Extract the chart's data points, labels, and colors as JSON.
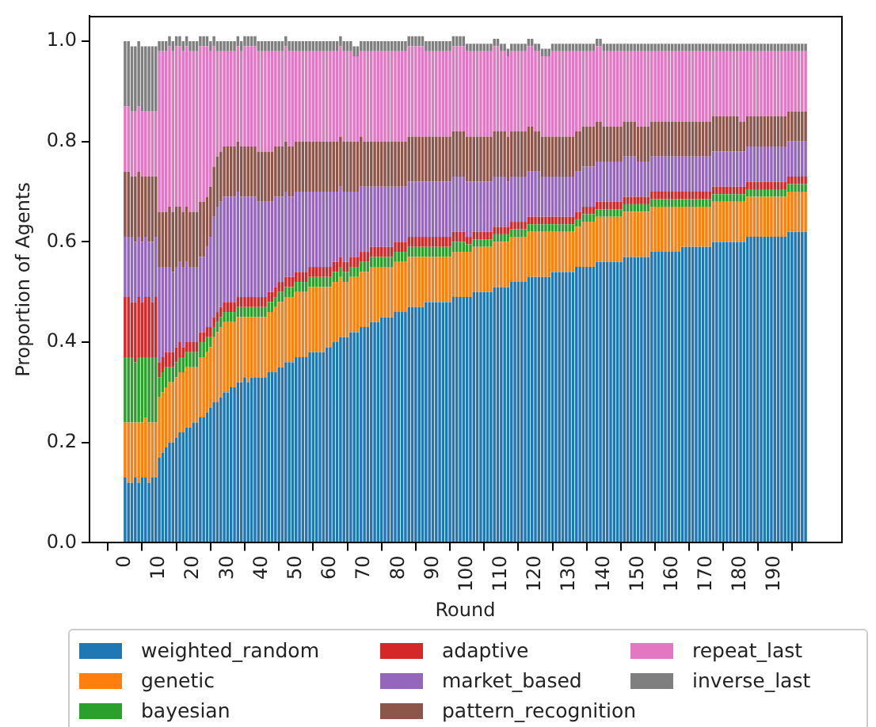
{
  "chart_data": {
    "type": "bar",
    "stacked": true,
    "xlabel": "Round",
    "ylabel": "Proportion of Agents",
    "legend": "bottom",
    "x": [
      0,
      1,
      2,
      3,
      4,
      5,
      6,
      7,
      8,
      9,
      10,
      11,
      12,
      13,
      14,
      15,
      16,
      17,
      18,
      19,
      20,
      21,
      22,
      23,
      24,
      25,
      26,
      27,
      28,
      29,
      30,
      31,
      32,
      33,
      34,
      35,
      36,
      37,
      38,
      39,
      40,
      41,
      42,
      43,
      44,
      45,
      46,
      47,
      48,
      49,
      50,
      51,
      52,
      53,
      54,
      55,
      56,
      57,
      58,
      59,
      60,
      61,
      62,
      63,
      64,
      65,
      66,
      67,
      68,
      69,
      70,
      71,
      72,
      73,
      74,
      75,
      76,
      77,
      78,
      79,
      80,
      81,
      82,
      83,
      84,
      85,
      86,
      87,
      88,
      89,
      90,
      91,
      92,
      93,
      94,
      95,
      96,
      97,
      98,
      99,
      100,
      101,
      102,
      103,
      104,
      105,
      106,
      107,
      108,
      109,
      110,
      111,
      112,
      113,
      114,
      115,
      116,
      117,
      118,
      119,
      120,
      121,
      122,
      123,
      124,
      125,
      126,
      127,
      128,
      129,
      130,
      131,
      132,
      133,
      134,
      135,
      136,
      137,
      138,
      139,
      140,
      141,
      142,
      143,
      144,
      145,
      146,
      147,
      148,
      149,
      150,
      151,
      152,
      153,
      154,
      155,
      156,
      157,
      158,
      159,
      160,
      161,
      162,
      163,
      164,
      165,
      166,
      167,
      168,
      169,
      170,
      171,
      172,
      173,
      174,
      175,
      176,
      177,
      178,
      179,
      180,
      181,
      182,
      183,
      184,
      185,
      186,
      187,
      188,
      189,
      190,
      191,
      192,
      193,
      194,
      195,
      196,
      197,
      198,
      199
    ],
    "xlim": [
      -10.4,
      209.4
    ],
    "xticks": [
      0,
      10,
      20,
      30,
      40,
      50,
      60,
      70,
      80,
      90,
      100,
      110,
      120,
      130,
      140,
      150,
      160,
      170,
      180,
      190
    ],
    "ylim": [
      0,
      1.05
    ],
    "yticks": [
      {
        "value": 0,
        "label": "0.0"
      },
      {
        "value": 0.2,
        "label": "0.2"
      },
      {
        "value": 0.4,
        "label": "0.4"
      },
      {
        "value": 0.6,
        "label": "0.6"
      },
      {
        "value": 0.8,
        "label": "0.8"
      },
      {
        "value": 1,
        "label": "1.0"
      }
    ],
    "series": [
      {
        "name": "weighted_random",
        "color": "#1f77b4",
        "values": [
          0.13,
          0.12,
          0.12,
          0.13,
          0.12,
          0.13,
          0.13,
          0.12,
          0.13,
          0.13,
          0.17,
          0.18,
          0.19,
          0.2,
          0.2,
          0.21,
          0.22,
          0.22,
          0.23,
          0.23,
          0.24,
          0.24,
          0.25,
          0.25,
          0.26,
          0.27,
          0.28,
          0.28,
          0.29,
          0.3,
          0.3,
          0.31,
          0.31,
          0.32,
          0.32,
          0.33,
          0.32,
          0.33,
          0.33,
          0.33,
          0.33,
          0.33,
          0.34,
          0.34,
          0.34,
          0.35,
          0.35,
          0.36,
          0.36,
          0.36,
          0.37,
          0.37,
          0.37,
          0.37,
          0.38,
          0.38,
          0.38,
          0.38,
          0.38,
          0.39,
          0.39,
          0.4,
          0.4,
          0.41,
          0.41,
          0.41,
          0.42,
          0.42,
          0.42,
          0.43,
          0.43,
          0.43,
          0.44,
          0.44,
          0.44,
          0.45,
          0.45,
          0.45,
          0.45,
          0.46,
          0.46,
          0.46,
          0.46,
          0.47,
          0.47,
          0.47,
          0.47,
          0.47,
          0.48,
          0.48,
          0.48,
          0.48,
          0.48,
          0.48,
          0.48,
          0.48,
          0.49,
          0.49,
          0.49,
          0.49,
          0.49,
          0.49,
          0.5,
          0.5,
          0.5,
          0.5,
          0.5,
          0.5,
          0.51,
          0.51,
          0.51,
          0.51,
          0.51,
          0.52,
          0.52,
          0.52,
          0.52,
          0.52,
          0.53,
          0.53,
          0.53,
          0.53,
          0.53,
          0.53,
          0.53,
          0.54,
          0.54,
          0.54,
          0.54,
          0.54,
          0.54,
          0.54,
          0.55,
          0.55,
          0.55,
          0.55,
          0.55,
          0.55,
          0.56,
          0.56,
          0.56,
          0.56,
          0.56,
          0.56,
          0.56,
          0.56,
          0.57,
          0.57,
          0.57,
          0.57,
          0.57,
          0.57,
          0.57,
          0.57,
          0.58,
          0.58,
          0.58,
          0.58,
          0.58,
          0.58,
          0.58,
          0.58,
          0.58,
          0.59,
          0.59,
          0.59,
          0.59,
          0.59,
          0.59,
          0.59,
          0.59,
          0.59,
          0.6,
          0.6,
          0.6,
          0.6,
          0.6,
          0.6,
          0.6,
          0.6,
          0.6,
          0.6,
          0.61,
          0.61,
          0.61,
          0.61,
          0.61,
          0.61,
          0.61,
          0.61,
          0.61,
          0.61,
          0.61,
          0.61,
          0.62,
          0.62,
          0.62,
          0.62,
          0.62,
          0.62
        ]
      },
      {
        "name": "genetic",
        "color": "#ff7f0e",
        "values": [
          0.11,
          0.12,
          0.12,
          0.11,
          0.12,
          0.11,
          0.12,
          0.12,
          0.11,
          0.11,
          0.12,
          0.12,
          0.12,
          0.12,
          0.12,
          0.12,
          0.12,
          0.12,
          0.12,
          0.12,
          0.11,
          0.11,
          0.12,
          0.12,
          0.12,
          0.12,
          0.13,
          0.14,
          0.14,
          0.14,
          0.14,
          0.13,
          0.13,
          0.13,
          0.13,
          0.12,
          0.13,
          0.12,
          0.12,
          0.12,
          0.12,
          0.12,
          0.12,
          0.12,
          0.13,
          0.13,
          0.13,
          0.13,
          0.13,
          0.13,
          0.13,
          0.13,
          0.13,
          0.13,
          0.13,
          0.13,
          0.13,
          0.13,
          0.13,
          0.12,
          0.12,
          0.12,
          0.12,
          0.12,
          0.11,
          0.11,
          0.11,
          0.11,
          0.11,
          0.11,
          0.11,
          0.11,
          0.11,
          0.11,
          0.11,
          0.1,
          0.1,
          0.1,
          0.1,
          0.1,
          0.1,
          0.1,
          0.1,
          0.1,
          0.1,
          0.1,
          0.1,
          0.1,
          0.09,
          0.09,
          0.09,
          0.09,
          0.09,
          0.09,
          0.09,
          0.09,
          0.09,
          0.09,
          0.09,
          0.09,
          0.09,
          0.09,
          0.09,
          0.09,
          0.09,
          0.09,
          0.09,
          0.09,
          0.09,
          0.09,
          0.09,
          0.09,
          0.09,
          0.09,
          0.09,
          0.09,
          0.09,
          0.09,
          0.09,
          0.09,
          0.09,
          0.09,
          0.09,
          0.09,
          0.09,
          0.08,
          0.08,
          0.08,
          0.08,
          0.08,
          0.08,
          0.08,
          0.08,
          0.08,
          0.09,
          0.09,
          0.09,
          0.09,
          0.09,
          0.09,
          0.09,
          0.09,
          0.09,
          0.09,
          0.09,
          0.09,
          0.09,
          0.09,
          0.09,
          0.09,
          0.09,
          0.09,
          0.09,
          0.09,
          0.09,
          0.09,
          0.09,
          0.09,
          0.09,
          0.09,
          0.09,
          0.09,
          0.09,
          0.08,
          0.08,
          0.08,
          0.08,
          0.08,
          0.08,
          0.08,
          0.08,
          0.08,
          0.08,
          0.08,
          0.08,
          0.08,
          0.08,
          0.08,
          0.08,
          0.08,
          0.08,
          0.08,
          0.08,
          0.08,
          0.08,
          0.08,
          0.08,
          0.08,
          0.08,
          0.08,
          0.08,
          0.08,
          0.08,
          0.08,
          0.08,
          0.08,
          0.08,
          0.08,
          0.08,
          0.08
        ]
      },
      {
        "name": "bayesian",
        "color": "#2ca02c",
        "values": [
          0.13,
          0.13,
          0.13,
          0.12,
          0.13,
          0.13,
          0.12,
          0.13,
          0.13,
          0.13,
          0.04,
          0.04,
          0.04,
          0.03,
          0.03,
          0.03,
          0.03,
          0.03,
          0.03,
          0.03,
          0.03,
          0.03,
          0.03,
          0.03,
          0.03,
          0.02,
          0.02,
          0.02,
          0.02,
          0.02,
          0.02,
          0.02,
          0.02,
          0.02,
          0.02,
          0.02,
          0.02,
          0.02,
          0.02,
          0.02,
          0.02,
          0.02,
          0.02,
          0.02,
          0.02,
          0.02,
          0.02,
          0.02,
          0.02,
          0.02,
          0.02,
          0.02,
          0.02,
          0.02,
          0.02,
          0.02,
          0.02,
          0.02,
          0.02,
          0.02,
          0.02,
          0.02,
          0.02,
          0.02,
          0.02,
          0.02,
          0.02,
          0.02,
          0.02,
          0.02,
          0.02,
          0.02,
          0.02,
          0.02,
          0.02,
          0.02,
          0.02,
          0.02,
          0.02,
          0.02,
          0.02,
          0.02,
          0.02,
          0.02,
          0.02,
          0.02,
          0.02,
          0.02,
          0.02,
          0.02,
          0.02,
          0.02,
          0.02,
          0.02,
          0.02,
          0.02,
          0.02,
          0.02,
          0.02,
          0.02,
          0.015,
          0.015,
          0.015,
          0.015,
          0.015,
          0.015,
          0.015,
          0.015,
          0.015,
          0.015,
          0.015,
          0.015,
          0.015,
          0.015,
          0.015,
          0.015,
          0.015,
          0.015,
          0.015,
          0.015,
          0.015,
          0.015,
          0.015,
          0.015,
          0.015,
          0.015,
          0.015,
          0.015,
          0.015,
          0.015,
          0.015,
          0.015,
          0.015,
          0.015,
          0.015,
          0.015,
          0.015,
          0.015,
          0.015,
          0.015,
          0.015,
          0.015,
          0.015,
          0.015,
          0.015,
          0.015,
          0.015,
          0.015,
          0.015,
          0.015,
          0.015,
          0.015,
          0.015,
          0.015,
          0.015,
          0.015,
          0.015,
          0.015,
          0.015,
          0.015,
          0.015,
          0.015,
          0.015,
          0.015,
          0.015,
          0.015,
          0.015,
          0.015,
          0.015,
          0.015,
          0.015,
          0.015,
          0.015,
          0.015,
          0.015,
          0.015,
          0.015,
          0.015,
          0.015,
          0.015,
          0.015,
          0.015,
          0.015,
          0.015,
          0.015,
          0.015,
          0.015,
          0.015,
          0.015,
          0.015,
          0.015,
          0.015,
          0.015,
          0.015,
          0.015,
          0.015,
          0.015,
          0.015,
          0.015,
          0.015
        ]
      },
      {
        "name": "adaptive",
        "color": "#d62728",
        "values": [
          0.12,
          0.12,
          0.11,
          0.12,
          0.12,
          0.11,
          0.12,
          0.12,
          0.11,
          0.12,
          0.03,
          0.03,
          0.03,
          0.03,
          0.03,
          0.03,
          0.03,
          0.02,
          0.02,
          0.02,
          0.02,
          0.02,
          0.02,
          0.02,
          0.02,
          0.02,
          0.02,
          0.02,
          0.02,
          0.02,
          0.02,
          0.02,
          0.02,
          0.02,
          0.02,
          0.02,
          0.02,
          0.02,
          0.02,
          0.02,
          0.02,
          0.02,
          0.02,
          0.02,
          0.02,
          0.02,
          0.02,
          0.02,
          0.02,
          0.02,
          0.02,
          0.02,
          0.02,
          0.02,
          0.02,
          0.02,
          0.02,
          0.02,
          0.02,
          0.02,
          0.02,
          0.02,
          0.02,
          0.02,
          0.02,
          0.02,
          0.02,
          0.02,
          0.02,
          0.02,
          0.02,
          0.02,
          0.02,
          0.02,
          0.02,
          0.02,
          0.02,
          0.02,
          0.02,
          0.02,
          0.02,
          0.02,
          0.02,
          0.02,
          0.02,
          0.02,
          0.02,
          0.02,
          0.02,
          0.02,
          0.02,
          0.02,
          0.02,
          0.02,
          0.02,
          0.02,
          0.02,
          0.02,
          0.02,
          0.02,
          0.015,
          0.015,
          0.015,
          0.015,
          0.015,
          0.015,
          0.015,
          0.015,
          0.015,
          0.015,
          0.015,
          0.015,
          0.015,
          0.015,
          0.015,
          0.015,
          0.015,
          0.015,
          0.015,
          0.015,
          0.015,
          0.015,
          0.015,
          0.015,
          0.015,
          0.015,
          0.015,
          0.015,
          0.015,
          0.015,
          0.015,
          0.015,
          0.015,
          0.015,
          0.015,
          0.015,
          0.015,
          0.015,
          0.015,
          0.015,
          0.015,
          0.015,
          0.015,
          0.015,
          0.015,
          0.015,
          0.015,
          0.015,
          0.015,
          0.015,
          0.015,
          0.015,
          0.015,
          0.015,
          0.015,
          0.015,
          0.015,
          0.015,
          0.015,
          0.015,
          0.015,
          0.015,
          0.015,
          0.015,
          0.015,
          0.015,
          0.015,
          0.015,
          0.015,
          0.015,
          0.015,
          0.015,
          0.015,
          0.015,
          0.015,
          0.015,
          0.015,
          0.015,
          0.015,
          0.015,
          0.015,
          0.015,
          0.015,
          0.015,
          0.015,
          0.015,
          0.015,
          0.015,
          0.015,
          0.015,
          0.015,
          0.015,
          0.015,
          0.015,
          0.015,
          0.015,
          0.015,
          0.015,
          0.015,
          0.015
        ]
      },
      {
        "name": "market_based",
        "color": "#9467bd",
        "values": [
          0.12,
          0.12,
          0.13,
          0.12,
          0.12,
          0.12,
          0.12,
          0.11,
          0.12,
          0.12,
          0.19,
          0.18,
          0.17,
          0.17,
          0.16,
          0.16,
          0.16,
          0.16,
          0.16,
          0.15,
          0.15,
          0.15,
          0.15,
          0.15,
          0.16,
          0.18,
          0.2,
          0.21,
          0.21,
          0.21,
          0.21,
          0.21,
          0.21,
          0.21,
          0.2,
          0.2,
          0.2,
          0.2,
          0.2,
          0.19,
          0.19,
          0.19,
          0.18,
          0.18,
          0.18,
          0.17,
          0.17,
          0.17,
          0.16,
          0.16,
          0.16,
          0.16,
          0.16,
          0.16,
          0.15,
          0.15,
          0.15,
          0.15,
          0.15,
          0.15,
          0.15,
          0.14,
          0.14,
          0.14,
          0.14,
          0.14,
          0.13,
          0.13,
          0.13,
          0.13,
          0.13,
          0.13,
          0.12,
          0.12,
          0.12,
          0.12,
          0.12,
          0.12,
          0.12,
          0.11,
          0.11,
          0.11,
          0.11,
          0.11,
          0.11,
          0.11,
          0.11,
          0.11,
          0.11,
          0.11,
          0.11,
          0.11,
          0.11,
          0.11,
          0.11,
          0.11,
          0.11,
          0.11,
          0.11,
          0.11,
          0.11,
          0.11,
          0.1,
          0.1,
          0.1,
          0.1,
          0.1,
          0.1,
          0.1,
          0.1,
          0.1,
          0.1,
          0.09,
          0.09,
          0.09,
          0.09,
          0.09,
          0.09,
          0.09,
          0.09,
          0.09,
          0.09,
          0.08,
          0.08,
          0.08,
          0.08,
          0.08,
          0.08,
          0.08,
          0.08,
          0.08,
          0.08,
          0.08,
          0.08,
          0.08,
          0.08,
          0.08,
          0.08,
          0.08,
          0.08,
          0.08,
          0.08,
          0.08,
          0.08,
          0.08,
          0.08,
          0.08,
          0.08,
          0.08,
          0.08,
          0.07,
          0.07,
          0.07,
          0.07,
          0.07,
          0.07,
          0.07,
          0.07,
          0.07,
          0.07,
          0.07,
          0.07,
          0.07,
          0.07,
          0.07,
          0.07,
          0.07,
          0.07,
          0.07,
          0.07,
          0.07,
          0.07,
          0.07,
          0.07,
          0.07,
          0.07,
          0.07,
          0.07,
          0.07,
          0.07,
          0.07,
          0.07,
          0.07,
          0.07,
          0.07,
          0.07,
          0.07,
          0.07,
          0.07,
          0.07,
          0.07,
          0.07,
          0.07,
          0.07,
          0.07,
          0.07,
          0.07,
          0.07,
          0.07,
          0.07
        ]
      },
      {
        "name": "pattern_recognition",
        "color": "#8c564b",
        "values": [
          0.13,
          0.13,
          0.12,
          0.13,
          0.13,
          0.13,
          0.12,
          0.13,
          0.13,
          0.12,
          0.11,
          0.11,
          0.11,
          0.12,
          0.12,
          0.12,
          0.11,
          0.11,
          0.11,
          0.11,
          0.11,
          0.11,
          0.11,
          0.11,
          0.1,
          0.1,
          0.1,
          0.1,
          0.1,
          0.1,
          0.1,
          0.1,
          0.1,
          0.1,
          0.1,
          0.1,
          0.1,
          0.1,
          0.1,
          0.1,
          0.1,
          0.1,
          0.1,
          0.1,
          0.1,
          0.1,
          0.1,
          0.1,
          0.1,
          0.1,
          0.1,
          0.1,
          0.1,
          0.1,
          0.1,
          0.1,
          0.1,
          0.1,
          0.1,
          0.1,
          0.1,
          0.1,
          0.1,
          0.1,
          0.1,
          0.1,
          0.1,
          0.1,
          0.1,
          0.1,
          0.09,
          0.09,
          0.09,
          0.09,
          0.09,
          0.09,
          0.09,
          0.09,
          0.09,
          0.09,
          0.09,
          0.09,
          0.09,
          0.09,
          0.09,
          0.09,
          0.09,
          0.09,
          0.09,
          0.09,
          0.09,
          0.09,
          0.09,
          0.09,
          0.09,
          0.09,
          0.09,
          0.09,
          0.09,
          0.09,
          0.09,
          0.09,
          0.09,
          0.09,
          0.09,
          0.09,
          0.09,
          0.09,
          0.09,
          0.09,
          0.09,
          0.09,
          0.09,
          0.09,
          0.09,
          0.09,
          0.09,
          0.09,
          0.09,
          0.09,
          0.08,
          0.08,
          0.08,
          0.08,
          0.08,
          0.08,
          0.08,
          0.08,
          0.08,
          0.08,
          0.08,
          0.08,
          0.08,
          0.08,
          0.08,
          0.08,
          0.08,
          0.08,
          0.08,
          0.08,
          0.07,
          0.07,
          0.07,
          0.07,
          0.07,
          0.07,
          0.07,
          0.07,
          0.07,
          0.07,
          0.07,
          0.07,
          0.07,
          0.07,
          0.07,
          0.07,
          0.07,
          0.07,
          0.07,
          0.07,
          0.07,
          0.07,
          0.07,
          0.07,
          0.07,
          0.07,
          0.07,
          0.07,
          0.07,
          0.07,
          0.07,
          0.07,
          0.07,
          0.07,
          0.07,
          0.07,
          0.07,
          0.07,
          0.07,
          0.07,
          0.06,
          0.06,
          0.06,
          0.06,
          0.06,
          0.06,
          0.06,
          0.06,
          0.06,
          0.06,
          0.06,
          0.06,
          0.06,
          0.06,
          0.06,
          0.06,
          0.06,
          0.06,
          0.06,
          0.06
        ]
      },
      {
        "name": "repeat_last",
        "color": "#e377c2",
        "values": [
          0.13,
          0.13,
          0.13,
          0.13,
          0.13,
          0.13,
          0.13,
          0.13,
          0.13,
          0.13,
          0.32,
          0.32,
          0.32,
          0.32,
          0.32,
          0.32,
          0.32,
          0.32,
          0.32,
          0.32,
          0.32,
          0.32,
          0.31,
          0.31,
          0.3,
          0.27,
          0.24,
          0.21,
          0.2,
          0.19,
          0.19,
          0.19,
          0.19,
          0.19,
          0.19,
          0.2,
          0.2,
          0.2,
          0.2,
          0.2,
          0.2,
          0.2,
          0.2,
          0.2,
          0.19,
          0.19,
          0.19,
          0.19,
          0.19,
          0.19,
          0.18,
          0.18,
          0.18,
          0.18,
          0.18,
          0.18,
          0.18,
          0.18,
          0.18,
          0.18,
          0.18,
          0.18,
          0.18,
          0.18,
          0.18,
          0.18,
          0.18,
          0.17,
          0.17,
          0.17,
          0.18,
          0.18,
          0.18,
          0.18,
          0.18,
          0.18,
          0.18,
          0.18,
          0.18,
          0.18,
          0.18,
          0.18,
          0.18,
          0.18,
          0.18,
          0.18,
          0.18,
          0.18,
          0.17,
          0.17,
          0.17,
          0.17,
          0.17,
          0.17,
          0.17,
          0.17,
          0.17,
          0.17,
          0.17,
          0.17,
          0.17,
          0.17,
          0.17,
          0.17,
          0.17,
          0.17,
          0.17,
          0.17,
          0.17,
          0.17,
          0.16,
          0.16,
          0.16,
          0.16,
          0.16,
          0.16,
          0.16,
          0.16,
          0.16,
          0.16,
          0.16,
          0.16,
          0.16,
          0.16,
          0.16,
          0.17,
          0.17,
          0.17,
          0.17,
          0.17,
          0.17,
          0.17,
          0.16,
          0.16,
          0.15,
          0.15,
          0.15,
          0.15,
          0.15,
          0.15,
          0.15,
          0.15,
          0.15,
          0.15,
          0.15,
          0.15,
          0.14,
          0.14,
          0.14,
          0.14,
          0.15,
          0.15,
          0.15,
          0.15,
          0.14,
          0.14,
          0.14,
          0.14,
          0.14,
          0.14,
          0.14,
          0.14,
          0.14,
          0.14,
          0.14,
          0.14,
          0.14,
          0.14,
          0.14,
          0.14,
          0.14,
          0.14,
          0.13,
          0.13,
          0.13,
          0.13,
          0.13,
          0.13,
          0.13,
          0.13,
          0.14,
          0.14,
          0.13,
          0.13,
          0.13,
          0.13,
          0.13,
          0.13,
          0.13,
          0.13,
          0.13,
          0.13,
          0.13,
          0.13,
          0.12,
          0.12,
          0.12,
          0.12,
          0.12,
          0.12
        ]
      },
      {
        "name": "inverse_last",
        "color": "#7f7f7f",
        "values": [
          0.13,
          0.13,
          0.13,
          0.13,
          0.13,
          0.13,
          0.13,
          0.13,
          0.13,
          0.13,
          0.02,
          0.02,
          0.02,
          0.02,
          0.02,
          0.02,
          0.02,
          0.02,
          0.02,
          0.02,
          0.02,
          0.02,
          0.02,
          0.02,
          0.02,
          0.02,
          0.02,
          0.02,
          0.02,
          0.02,
          0.02,
          0.02,
          0.02,
          0.02,
          0.02,
          0.02,
          0.02,
          0.02,
          0.02,
          0.02,
          0.02,
          0.02,
          0.02,
          0.02,
          0.02,
          0.02,
          0.02,
          0.02,
          0.02,
          0.02,
          0.02,
          0.02,
          0.02,
          0.02,
          0.02,
          0.02,
          0.02,
          0.02,
          0.02,
          0.02,
          0.02,
          0.02,
          0.02,
          0.02,
          0.02,
          0.02,
          0.02,
          0.02,
          0.02,
          0.02,
          0.02,
          0.02,
          0.02,
          0.02,
          0.02,
          0.02,
          0.02,
          0.02,
          0.02,
          0.02,
          0.02,
          0.02,
          0.02,
          0.02,
          0.02,
          0.02,
          0.02,
          0.02,
          0.02,
          0.02,
          0.02,
          0.02,
          0.02,
          0.02,
          0.02,
          0.02,
          0.02,
          0.02,
          0.02,
          0.02,
          0.015,
          0.015,
          0.015,
          0.015,
          0.015,
          0.015,
          0.015,
          0.015,
          0.015,
          0.015,
          0.015,
          0.015,
          0.015,
          0.015,
          0.015,
          0.015,
          0.015,
          0.015,
          0.015,
          0.015,
          0.015,
          0.015,
          0.015,
          0.015,
          0.015,
          0.015,
          0.015,
          0.015,
          0.015,
          0.015,
          0.015,
          0.015,
          0.015,
          0.015,
          0.015,
          0.015,
          0.015,
          0.015,
          0.015,
          0.015,
          0.015,
          0.015,
          0.015,
          0.015,
          0.015,
          0.015,
          0.015,
          0.015,
          0.015,
          0.015,
          0.015,
          0.015,
          0.015,
          0.015,
          0.015,
          0.015,
          0.015,
          0.015,
          0.015,
          0.015,
          0.015,
          0.015,
          0.015,
          0.015,
          0.015,
          0.015,
          0.015,
          0.015,
          0.015,
          0.015,
          0.015,
          0.015,
          0.015,
          0.015,
          0.015,
          0.015,
          0.015,
          0.015,
          0.015,
          0.015,
          0.015,
          0.015,
          0.015,
          0.015,
          0.015,
          0.015,
          0.015,
          0.015,
          0.015,
          0.015,
          0.015,
          0.015,
          0.015,
          0.015,
          0.015,
          0.015,
          0.015,
          0.015,
          0.015,
          0.015
        ]
      }
    ]
  }
}
